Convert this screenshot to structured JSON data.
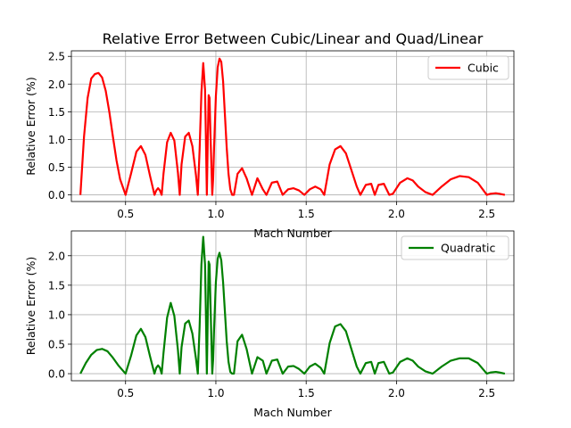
{
  "chart_data": [
    {
      "type": "line",
      "title": "Relative Error Between Cubic/Linear and Quad/Linear",
      "xlabel": "Mach Number",
      "ylabel": "Relative Error (%)",
      "xlim": [
        0.2,
        2.65
      ],
      "ylim": [
        -0.12,
        2.6
      ],
      "xticks": [
        "0.5",
        "1.0",
        "1.5",
        "2.0",
        "2.5"
      ],
      "xtick_values": [
        0.5,
        1.0,
        1.5,
        2.0,
        2.5
      ],
      "yticks": [
        "0.0",
        "0.5",
        "1.0",
        "1.5",
        "2.0",
        "2.5"
      ],
      "ytick_values": [
        0,
        0.5,
        1.0,
        1.5,
        2.0,
        2.5
      ],
      "grid": true,
      "legend": "upper-right",
      "series": [
        {
          "name": "Cubic",
          "color": "#ff0000",
          "x": [
            0.25,
            0.27,
            0.29,
            0.31,
            0.33,
            0.35,
            0.37,
            0.39,
            0.41,
            0.43,
            0.45,
            0.47,
            0.5,
            0.53,
            0.56,
            0.585,
            0.61,
            0.635,
            0.66,
            0.67,
            0.68,
            0.69,
            0.7,
            0.71,
            0.73,
            0.75,
            0.77,
            0.79,
            0.8,
            0.81,
            0.83,
            0.85,
            0.87,
            0.89,
            0.9,
            0.91,
            0.92,
            0.93,
            0.94,
            0.945,
            0.95,
            0.955,
            0.96,
            0.965,
            0.97,
            0.98,
            0.985,
            0.99,
            1.0,
            1.01,
            1.02,
            1.03,
            1.04,
            1.05,
            1.06,
            1.07,
            1.08,
            1.09,
            1.1,
            1.12,
            1.145,
            1.17,
            1.2,
            1.23,
            1.26,
            1.28,
            1.31,
            1.34,
            1.37,
            1.4,
            1.43,
            1.46,
            1.49,
            1.52,
            1.55,
            1.58,
            1.6,
            1.63,
            1.66,
            1.69,
            1.72,
            1.75,
            1.78,
            1.8,
            1.83,
            1.86,
            1.88,
            1.9,
            1.93,
            1.96,
            1.98,
            2.02,
            2.06,
            2.09,
            2.12,
            2.16,
            2.2,
            2.25,
            2.3,
            2.35,
            2.4,
            2.45,
            2.5,
            2.52,
            2.55,
            2.57,
            2.6
          ],
          "y": [
            0.0,
            1.05,
            1.75,
            2.1,
            2.18,
            2.2,
            2.12,
            1.88,
            1.5,
            1.05,
            0.62,
            0.28,
            0.0,
            0.38,
            0.78,
            0.88,
            0.72,
            0.35,
            0.0,
            0.08,
            0.12,
            0.08,
            0.0,
            0.38,
            0.95,
            1.12,
            0.98,
            0.4,
            0.0,
            0.55,
            1.05,
            1.12,
            0.88,
            0.35,
            0.0,
            0.82,
            1.85,
            2.38,
            1.9,
            1.0,
            0.0,
            0.95,
            1.8,
            1.75,
            1.1,
            0.0,
            0.3,
            0.85,
            1.78,
            2.3,
            2.46,
            2.4,
            2.05,
            1.45,
            0.85,
            0.38,
            0.1,
            0.0,
            0.0,
            0.38,
            0.48,
            0.3,
            0.0,
            0.3,
            0.1,
            0.0,
            0.22,
            0.24,
            0.0,
            0.1,
            0.12,
            0.08,
            0.0,
            0.1,
            0.15,
            0.1,
            0.0,
            0.55,
            0.82,
            0.88,
            0.75,
            0.45,
            0.15,
            0.0,
            0.18,
            0.2,
            0.0,
            0.18,
            0.2,
            0.0,
            0.02,
            0.22,
            0.3,
            0.26,
            0.15,
            0.05,
            0.0,
            0.15,
            0.28,
            0.34,
            0.32,
            0.22,
            0.0,
            0.02,
            0.03,
            0.02,
            0.0
          ]
        }
      ]
    },
    {
      "type": "line",
      "title": "",
      "xlabel": "Mach Number",
      "ylabel": "Relative Error (%)",
      "xlim": [
        0.2,
        2.65
      ],
      "ylim": [
        -0.12,
        2.42
      ],
      "xticks": [
        "0.5",
        "1.0",
        "1.5",
        "2.0",
        "2.5"
      ],
      "xtick_values": [
        0.5,
        1.0,
        1.5,
        2.0,
        2.5
      ],
      "yticks": [
        "0.0",
        "0.5",
        "1.0",
        "1.5",
        "2.0"
      ],
      "ytick_values": [
        0,
        0.5,
        1.0,
        1.5,
        2.0
      ],
      "grid": true,
      "legend": "upper-right",
      "series": [
        {
          "name": "Quadratic",
          "color": "#008000",
          "x": [
            0.25,
            0.28,
            0.31,
            0.34,
            0.37,
            0.4,
            0.43,
            0.46,
            0.5,
            0.53,
            0.56,
            0.585,
            0.61,
            0.635,
            0.66,
            0.67,
            0.68,
            0.69,
            0.7,
            0.71,
            0.73,
            0.75,
            0.77,
            0.79,
            0.8,
            0.81,
            0.83,
            0.85,
            0.87,
            0.89,
            0.9,
            0.91,
            0.92,
            0.93,
            0.94,
            0.945,
            0.95,
            0.955,
            0.96,
            0.965,
            0.97,
            0.98,
            0.985,
            0.99,
            1.0,
            1.01,
            1.02,
            1.03,
            1.04,
            1.05,
            1.06,
            1.07,
            1.08,
            1.09,
            1.1,
            1.12,
            1.145,
            1.17,
            1.2,
            1.23,
            1.26,
            1.28,
            1.31,
            1.34,
            1.37,
            1.4,
            1.43,
            1.46,
            1.49,
            1.52,
            1.55,
            1.58,
            1.6,
            1.63,
            1.66,
            1.69,
            1.72,
            1.75,
            1.78,
            1.8,
            1.83,
            1.86,
            1.88,
            1.9,
            1.93,
            1.96,
            1.98,
            2.02,
            2.06,
            2.09,
            2.12,
            2.16,
            2.2,
            2.25,
            2.3,
            2.35,
            2.4,
            2.45,
            2.5,
            2.52,
            2.55,
            2.57,
            2.6
          ],
          "y": [
            0.0,
            0.18,
            0.32,
            0.4,
            0.42,
            0.38,
            0.27,
            0.14,
            0.0,
            0.3,
            0.65,
            0.76,
            0.62,
            0.3,
            0.0,
            0.1,
            0.14,
            0.1,
            0.0,
            0.35,
            0.95,
            1.2,
            0.98,
            0.4,
            0.0,
            0.45,
            0.85,
            0.9,
            0.68,
            0.25,
            0.0,
            0.8,
            1.85,
            2.32,
            1.85,
            1.0,
            0.0,
            0.95,
            1.9,
            1.85,
            1.2,
            0.0,
            0.25,
            0.75,
            1.55,
            1.95,
            2.05,
            1.92,
            1.55,
            1.05,
            0.55,
            0.2,
            0.03,
            0.0,
            0.0,
            0.55,
            0.66,
            0.42,
            0.0,
            0.28,
            0.22,
            0.0,
            0.22,
            0.24,
            0.0,
            0.12,
            0.13,
            0.08,
            0.0,
            0.12,
            0.17,
            0.1,
            0.0,
            0.52,
            0.8,
            0.84,
            0.72,
            0.42,
            0.12,
            0.0,
            0.18,
            0.2,
            0.0,
            0.18,
            0.2,
            0.0,
            0.02,
            0.2,
            0.26,
            0.22,
            0.12,
            0.04,
            0.0,
            0.12,
            0.22,
            0.26,
            0.26,
            0.18,
            0.0,
            0.02,
            0.03,
            0.02,
            0.0
          ]
        }
      ]
    }
  ]
}
